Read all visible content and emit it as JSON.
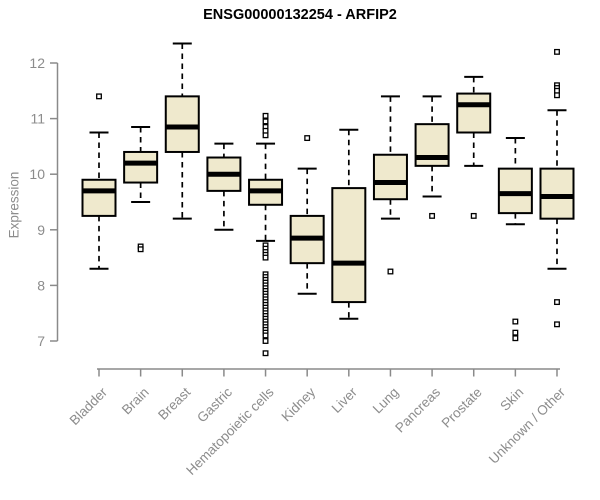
{
  "chart_data": {
    "type": "boxplot",
    "title": "ENSG00000132254 - ARFIP2",
    "xlabel": "",
    "ylabel": "Expression",
    "ylim": [
      6.5,
      12.45
    ],
    "yticks": [
      7,
      8,
      9,
      10,
      11,
      12
    ],
    "grid": false,
    "legend": "none",
    "box_fill": "#EFE9CD",
    "box_border": "#000000",
    "axis_color": "#8a8a8a",
    "label_color": "#8c8c8c",
    "categories": [
      "Bladder",
      "Brain",
      "Breast",
      "Gastric",
      "Hematopoietic cells",
      "Kidney",
      "Liver",
      "Lung",
      "Pancreas",
      "Prostate",
      "Skin",
      "Unknown / Other"
    ],
    "series": [
      {
        "category": "Bladder",
        "whisker_low": 8.3,
        "q1": 9.25,
        "median": 9.7,
        "q3": 9.9,
        "whisker_high": 10.75,
        "outliers": [
          11.4
        ]
      },
      {
        "category": "Brain",
        "whisker_low": 9.5,
        "q1": 9.85,
        "median": 10.2,
        "q3": 10.4,
        "whisker_high": 10.85,
        "outliers": [
          8.7,
          8.65
        ]
      },
      {
        "category": "Breast",
        "whisker_low": 9.2,
        "q1": 10.4,
        "median": 10.85,
        "q3": 11.4,
        "whisker_high": 12.35,
        "outliers": []
      },
      {
        "category": "Gastric",
        "whisker_low": 9.0,
        "q1": 9.7,
        "median": 10.0,
        "q3": 10.3,
        "whisker_high": 10.55,
        "outliers": []
      },
      {
        "category": "Hematopoietic cells",
        "whisker_low": 8.8,
        "q1": 9.45,
        "median": 9.7,
        "q3": 9.9,
        "whisker_high": 10.55,
        "outliers": [
          11.05,
          10.95,
          10.85,
          10.78,
          10.7,
          8.72,
          8.66,
          8.6,
          8.55,
          8.5,
          8.2,
          8.15,
          8.1,
          8.05,
          8.0,
          7.95,
          7.9,
          7.85,
          7.8,
          7.75,
          7.7,
          7.65,
          7.6,
          7.55,
          7.5,
          7.45,
          7.4,
          7.35,
          7.3,
          7.25,
          7.2,
          7.15,
          7.1,
          7.0,
          6.78
        ]
      },
      {
        "category": "Kidney",
        "whisker_low": 7.85,
        "q1": 8.4,
        "median": 8.85,
        "q3": 9.25,
        "whisker_high": 10.1,
        "outliers": [
          10.65
        ]
      },
      {
        "category": "Liver",
        "whisker_low": 7.4,
        "q1": 7.7,
        "median": 8.4,
        "q3": 9.75,
        "whisker_high": 10.8,
        "outliers": []
      },
      {
        "category": "Lung",
        "whisker_low": 9.2,
        "q1": 9.55,
        "median": 9.85,
        "q3": 10.35,
        "whisker_high": 11.4,
        "outliers": [
          8.25
        ]
      },
      {
        "category": "Pancreas",
        "whisker_low": 9.6,
        "q1": 10.15,
        "median": 10.3,
        "q3": 10.9,
        "whisker_high": 11.4,
        "outliers": [
          9.25
        ]
      },
      {
        "category": "Prostate",
        "whisker_low": 10.15,
        "q1": 10.75,
        "median": 11.25,
        "q3": 11.45,
        "whisker_high": 11.75,
        "outliers": [
          9.25
        ]
      },
      {
        "category": "Skin",
        "whisker_low": 9.1,
        "q1": 9.3,
        "median": 9.65,
        "q3": 10.1,
        "whisker_high": 10.65,
        "outliers": [
          7.35,
          7.15,
          7.05
        ]
      },
      {
        "category": "Unknown / Other",
        "whisker_low": 8.3,
        "q1": 9.2,
        "median": 9.6,
        "q3": 10.1,
        "whisker_high": 11.15,
        "outliers": [
          12.2,
          11.6,
          11.55,
          11.5,
          11.42,
          7.7,
          7.3
        ]
      }
    ]
  }
}
